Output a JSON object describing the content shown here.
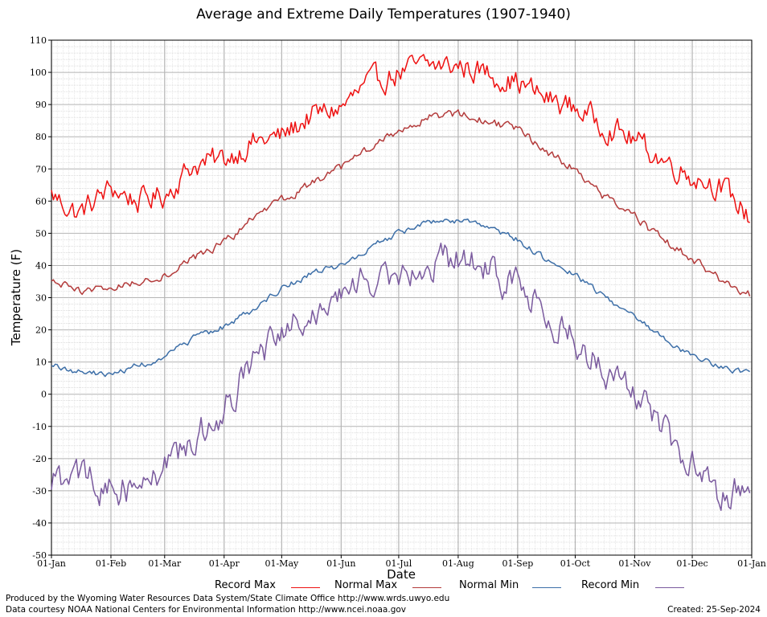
{
  "chart_data": {
    "type": "line",
    "title": "Average and Extreme Daily Temperatures (1907-1940)",
    "xlabel": "Date",
    "ylabel": "Temperature (F)",
    "ylim": [
      -50,
      110
    ],
    "yticks": [
      110,
      100,
      90,
      80,
      70,
      60,
      50,
      40,
      30,
      20,
      10,
      0,
      -10,
      -20,
      -30,
      -40,
      -50
    ],
    "xticks": [
      "01-Jan",
      "01-Feb",
      "01-Mar",
      "01-Apr",
      "01-May",
      "01-Jun",
      "01-Jul",
      "01-Aug",
      "01-Sep",
      "01-Oct",
      "01-Nov",
      "01-Dec",
      "01-Jan"
    ],
    "grid": "on",
    "legend_position": "bottom",
    "series": [
      {
        "name": "Record Max",
        "color": "#ee1111",
        "x": [
          "01-Jan",
          "15-Jan",
          "01-Feb",
          "15-Feb",
          "01-Mar",
          "15-Mar",
          "01-Apr",
          "15-Apr",
          "01-May",
          "15-May",
          "01-Jun",
          "15-Jun",
          "01-Jul",
          "15-Jul",
          "01-Aug",
          "15-Aug",
          "01-Sep",
          "15-Sep",
          "01-Oct",
          "15-Oct",
          "01-Nov",
          "15-Nov",
          "01-Dec",
          "15-Dec",
          "31-Dec"
        ],
        "values": [
          62,
          56,
          64,
          60,
          62,
          71,
          73,
          78,
          80,
          86,
          89,
          96,
          100,
          102,
          102,
          100,
          97,
          92,
          89,
          84,
          79,
          73,
          68,
          65,
          55
        ]
      },
      {
        "name": "Normal Max",
        "color": "#b33b3b",
        "x": [
          "01-Jan",
          "15-Jan",
          "01-Feb",
          "15-Feb",
          "01-Mar",
          "15-Mar",
          "01-Apr",
          "15-Apr",
          "01-May",
          "15-May",
          "01-Jun",
          "15-Jun",
          "01-Jul",
          "15-Jul",
          "01-Aug",
          "15-Aug",
          "01-Sep",
          "15-Sep",
          "01-Oct",
          "15-Oct",
          "01-Nov",
          "15-Nov",
          "01-Dec",
          "15-Dec",
          "31-Dec"
        ],
        "values": [
          35,
          32,
          33,
          35,
          37,
          42,
          47,
          54,
          60,
          65,
          70,
          76,
          82,
          86,
          87,
          85,
          82,
          76,
          70,
          62,
          55,
          48,
          42,
          36,
          31
        ]
      },
      {
        "name": "Normal Min",
        "color": "#3d6fa8",
        "x": [
          "01-Jan",
          "15-Jan",
          "01-Feb",
          "15-Feb",
          "01-Mar",
          "15-Mar",
          "01-Apr",
          "15-Apr",
          "01-May",
          "15-May",
          "01-Jun",
          "15-Jun",
          "01-Jul",
          "15-Jul",
          "01-Aug",
          "15-Aug",
          "01-Sep",
          "15-Sep",
          "01-Oct",
          "15-Oct",
          "01-Nov",
          "15-Nov",
          "01-Dec",
          "15-Dec",
          "31-Dec"
        ],
        "values": [
          9,
          7,
          6,
          9,
          11,
          17,
          21,
          26,
          33,
          37,
          40,
          45,
          50,
          53,
          54,
          52,
          48,
          42,
          37,
          31,
          24,
          18,
          12,
          9,
          6
        ]
      },
      {
        "name": "Record Min",
        "color": "#7a5a9e",
        "x": [
          "01-Jan",
          "15-Jan",
          "01-Feb",
          "15-Feb",
          "01-Mar",
          "15-Mar",
          "01-Apr",
          "15-Apr",
          "01-May",
          "15-May",
          "01-Jun",
          "15-Jun",
          "01-Jul",
          "15-Jul",
          "01-Aug",
          "15-Aug",
          "01-Sep",
          "15-Sep",
          "01-Oct",
          "15-Oct",
          "01-Nov",
          "15-Nov",
          "01-Dec",
          "15-Dec",
          "31-Dec"
        ],
        "values": [
          -28,
          -25,
          -30,
          -28,
          -22,
          -15,
          -5,
          10,
          17,
          26,
          30,
          36,
          39,
          41,
          42,
          39,
          33,
          25,
          18,
          8,
          2,
          -10,
          -22,
          -30,
          -30
        ]
      }
    ]
  },
  "footer": {
    "produced_by": "Produced by the Wyoming Water Resources Data System/State Climate Office http://www.wrds.uwyo.edu",
    "data_courtesy": "Data courtesy NOAA National Centers for Environmental Information http://www.ncei.noaa.gov",
    "created": "Created: 25-Sep-2024"
  }
}
